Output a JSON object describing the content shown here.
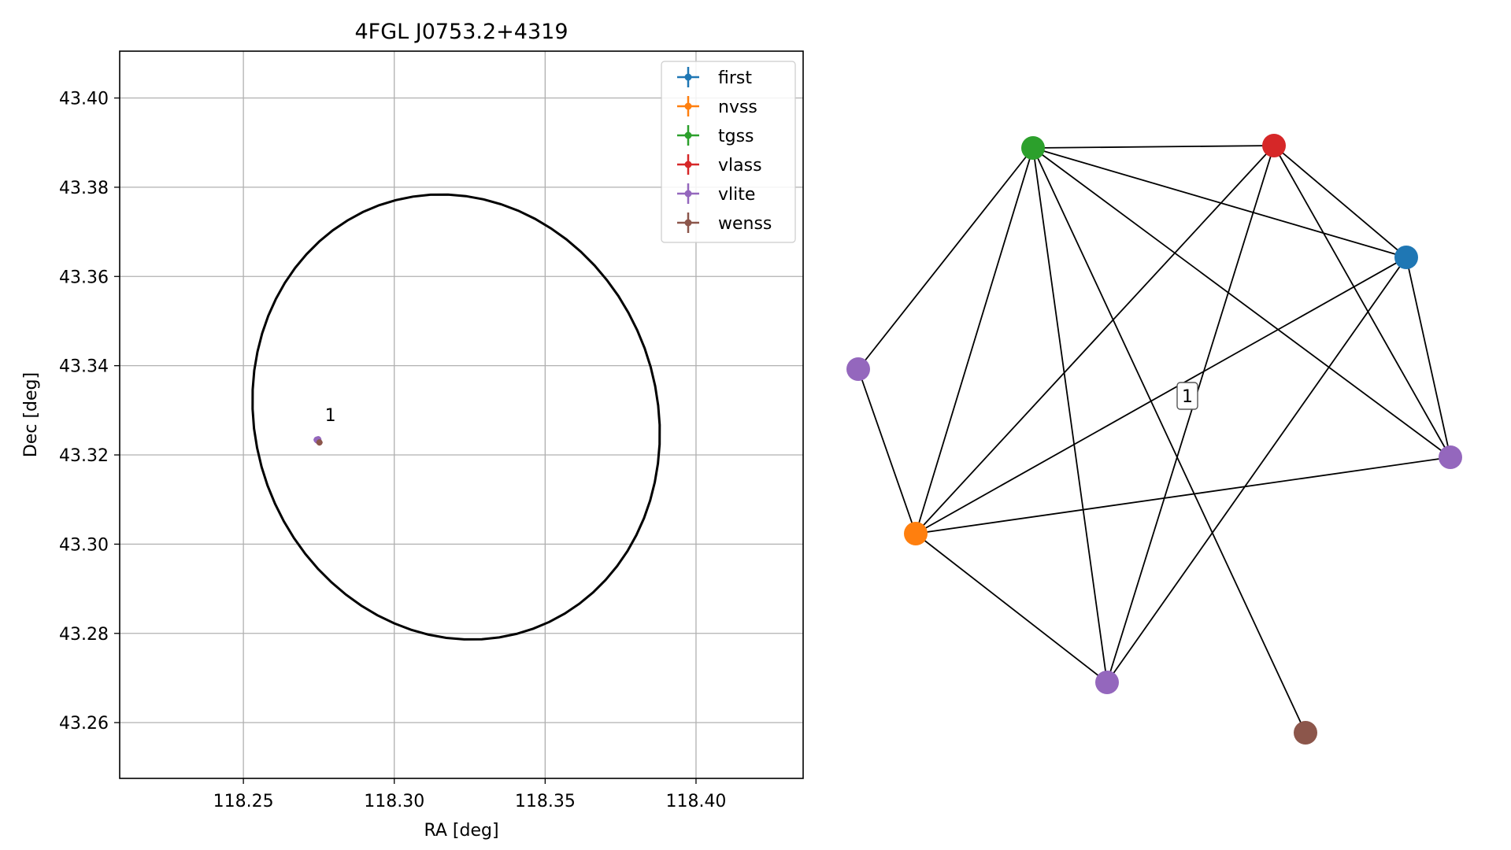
{
  "chart_data": [
    {
      "type": "scatter",
      "title": "4FGL J0753.2+4319",
      "xlabel": "RA [deg]",
      "ylabel": "Dec [deg]",
      "xlim": [
        118.209,
        118.4355
      ],
      "ylim": [
        43.2475,
        43.4105
      ],
      "x_ticks": [
        {
          "value": 118.25,
          "label": "118.25"
        },
        {
          "value": 118.3,
          "label": "118.30"
        },
        {
          "value": 118.35,
          "label": "118.35"
        },
        {
          "value": 118.4,
          "label": "118.40"
        }
      ],
      "y_ticks": [
        {
          "value": 43.26,
          "label": "43.26"
        },
        {
          "value": 43.28,
          "label": "43.28"
        },
        {
          "value": 43.3,
          "label": "43.30"
        },
        {
          "value": 43.32,
          "label": "43.32"
        },
        {
          "value": 43.34,
          "label": "43.34"
        },
        {
          "value": 43.36,
          "label": "43.36"
        },
        {
          "value": 43.38,
          "label": "43.38"
        },
        {
          "value": 43.4,
          "label": "43.40"
        }
      ],
      "grid": true,
      "legend_position": "top-right",
      "series": [
        {
          "name": "first",
          "color": "#1f77b4",
          "points": [
            [
              118.2745,
              43.3233
            ]
          ]
        },
        {
          "name": "nvss",
          "color": "#ff7f0e",
          "points": [
            [
              118.2747,
              43.3232
            ]
          ]
        },
        {
          "name": "tgss",
          "color": "#2ca02c",
          "points": [
            [
              118.2744,
              43.3234
            ]
          ]
        },
        {
          "name": "vlass",
          "color": "#d62728",
          "points": [
            [
              118.2745,
              43.3233
            ]
          ]
        },
        {
          "name": "vlite",
          "color": "#9467bd",
          "points": [
            [
              118.2743,
              43.3234
            ],
            [
              118.2746,
              43.3232
            ],
            [
              118.2748,
              43.3235
            ]
          ]
        },
        {
          "name": "wenss",
          "color": "#8c564b",
          "points": [
            [
              118.2752,
              43.3228
            ]
          ]
        }
      ],
      "ellipse": {
        "description": "4FGL 95% localization ellipse",
        "color": "#000000",
        "center": [
          118.3205,
          43.3285
        ],
        "half_width_deg": 0.0665,
        "half_height_deg": 0.0505,
        "rotation_deg": 20
      },
      "annotations": [
        {
          "text": "1",
          "x": 118.2765,
          "y": 43.3265
        }
      ]
    },
    {
      "type": "network",
      "edge_color": "#000000",
      "cluster_label": "1",
      "nodes": [
        {
          "id": "tgss",
          "survey": "tgss",
          "color": "#2ca02c"
        },
        {
          "id": "vlass",
          "survey": "vlass",
          "color": "#d62728"
        },
        {
          "id": "first",
          "survey": "first",
          "color": "#1f77b4"
        },
        {
          "id": "vlite_a",
          "survey": "vlite",
          "color": "#9467bd"
        },
        {
          "id": "vlite_b",
          "survey": "vlite",
          "color": "#9467bd"
        },
        {
          "id": "vlite_c",
          "survey": "vlite",
          "color": "#9467bd"
        },
        {
          "id": "nvss",
          "survey": "nvss",
          "color": "#ff7f0e"
        },
        {
          "id": "wenss",
          "survey": "wenss",
          "color": "#8c564b"
        }
      ],
      "edges": [
        [
          "tgss",
          "vlass"
        ],
        [
          "tgss",
          "first"
        ],
        [
          "tgss",
          "vlite_a"
        ],
        [
          "tgss",
          "nvss"
        ],
        [
          "tgss",
          "vlite_c"
        ],
        [
          "tgss",
          "wenss"
        ],
        [
          "tgss",
          "vlite_b"
        ],
        [
          "vlass",
          "first"
        ],
        [
          "vlass",
          "nvss"
        ],
        [
          "vlass",
          "vlite_c"
        ],
        [
          "vlass",
          "vlite_b"
        ],
        [
          "first",
          "nvss"
        ],
        [
          "first",
          "vlite_b"
        ],
        [
          "first",
          "vlite_c"
        ],
        [
          "vlite_a",
          "nvss"
        ],
        [
          "nvss",
          "vlite_b"
        ],
        [
          "nvss",
          "vlite_c"
        ]
      ]
    }
  ]
}
